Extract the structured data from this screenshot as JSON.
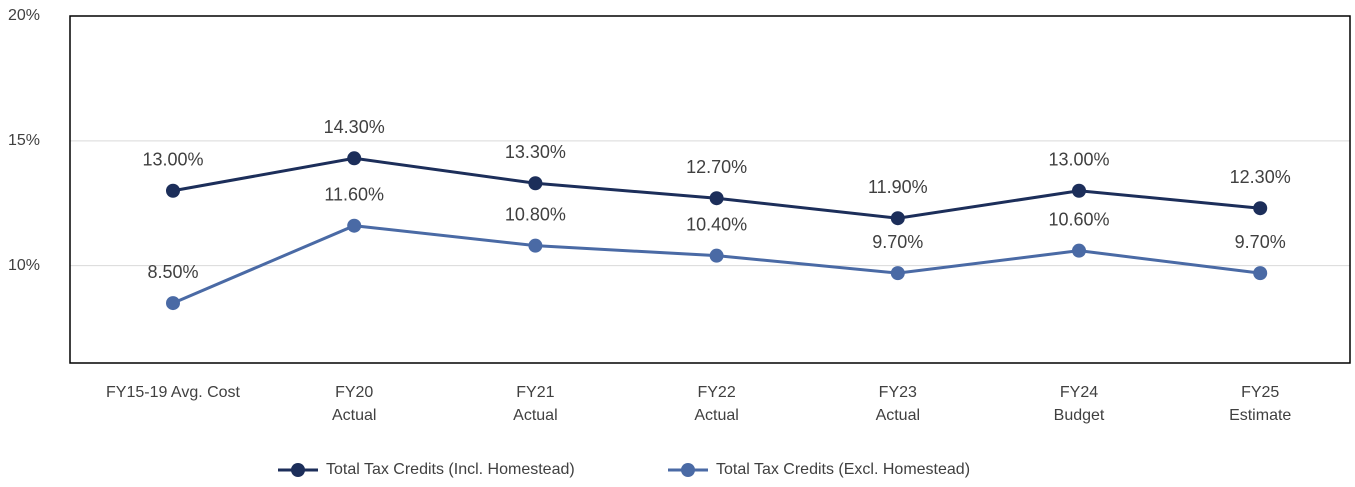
{
  "chart_data": {
    "type": "line",
    "categories": [
      "FY15-19 Avg. Cost",
      "FY20\nActual",
      "FY21\nActual",
      "FY22\nActual",
      "FY23\nActual",
      "FY24\nBudget",
      "FY25\nEstimate"
    ],
    "series": [
      {
        "name": "Total Tax Credits (Incl. Homestead)",
        "color": "#1c2e5a",
        "values": [
          13.0,
          14.3,
          13.3,
          12.7,
          11.9,
          13.0,
          12.3
        ],
        "value_labels": [
          "13.00%",
          "14.30%",
          "13.30%",
          "12.70%",
          "11.90%",
          "13.00%",
          "12.30%"
        ]
      },
      {
        "name": "Total Tax Credits (Excl. Homestead)",
        "color": "#4a6aa5",
        "values": [
          8.5,
          11.6,
          10.8,
          10.4,
          9.7,
          10.6,
          9.7
        ],
        "value_labels": [
          "8.50%",
          "11.60%",
          "10.80%",
          "10.40%",
          "9.70%",
          "10.60%",
          "9.70%"
        ]
      }
    ],
    "ylim": [
      6.1,
      20
    ],
    "yticks": [
      {
        "value": 10,
        "label": "10%"
      },
      {
        "value": 15,
        "label": "15%"
      },
      {
        "value": 20,
        "label": "20%"
      }
    ],
    "grid": true,
    "legend": "bottom"
  }
}
